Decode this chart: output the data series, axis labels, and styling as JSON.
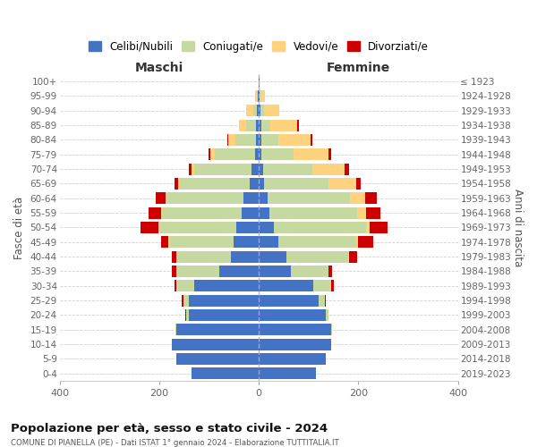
{
  "age_groups": [
    "0-4",
    "5-9",
    "10-14",
    "15-19",
    "20-24",
    "25-29",
    "30-34",
    "35-39",
    "40-44",
    "45-49",
    "50-54",
    "55-59",
    "60-64",
    "65-69",
    "70-74",
    "75-79",
    "80-84",
    "85-89",
    "90-94",
    "95-99",
    "100+"
  ],
  "birth_years": [
    "2019-2023",
    "2014-2018",
    "2009-2013",
    "2004-2008",
    "1999-2003",
    "1994-1998",
    "1989-1993",
    "1984-1988",
    "1979-1983",
    "1974-1978",
    "1969-1973",
    "1964-1968",
    "1959-1963",
    "1954-1958",
    "1949-1953",
    "1944-1948",
    "1939-1943",
    "1934-1938",
    "1929-1933",
    "1924-1928",
    "≤ 1923"
  ],
  "colors": {
    "single": "#4472c4",
    "married": "#c5d9a0",
    "widowed": "#ffd280",
    "divorced": "#cc0000"
  },
  "maschi": {
    "single": [
      135,
      165,
      175,
      165,
      140,
      140,
      130,
      80,
      55,
      50,
      45,
      35,
      30,
      18,
      15,
      8,
      6,
      5,
      3,
      2,
      1
    ],
    "married": [
      0,
      0,
      0,
      2,
      5,
      12,
      35,
      85,
      110,
      130,
      155,
      160,
      155,
      140,
      115,
      80,
      40,
      20,
      8,
      2,
      0
    ],
    "widowed": [
      0,
      0,
      0,
      0,
      0,
      0,
      0,
      0,
      0,
      1,
      2,
      2,
      2,
      4,
      5,
      10,
      15,
      15,
      15,
      3,
      0
    ],
    "divorced": [
      0,
      0,
      0,
      0,
      2,
      2,
      5,
      10,
      10,
      15,
      35,
      25,
      20,
      8,
      5,
      2,
      2,
      0,
      0,
      0,
      0
    ]
  },
  "femmine": {
    "single": [
      115,
      135,
      145,
      145,
      135,
      120,
      110,
      65,
      55,
      40,
      30,
      22,
      18,
      10,
      8,
      5,
      5,
      5,
      3,
      2,
      1
    ],
    "married": [
      0,
      0,
      0,
      2,
      5,
      12,
      35,
      75,
      125,
      155,
      185,
      175,
      165,
      130,
      100,
      65,
      35,
      18,
      8,
      2,
      0
    ],
    "widowed": [
      0,
      0,
      0,
      0,
      0,
      0,
      0,
      0,
      2,
      5,
      8,
      18,
      30,
      55,
      65,
      70,
      65,
      55,
      30,
      8,
      0
    ],
    "divorced": [
      0,
      0,
      0,
      0,
      0,
      2,
      5,
      8,
      15,
      30,
      35,
      30,
      25,
      10,
      8,
      5,
      2,
      2,
      0,
      0,
      0
    ]
  },
  "title_main": "Popolazione per età, sesso e stato civile - 2024",
  "title_sub": "COMUNE DI PIANELLA (PE) - Dati ISTAT 1° gennaio 2024 - Elaborazione TUTTITALIA.IT",
  "xlabel_left": "Maschi",
  "xlabel_right": "Femmine",
  "ylabel_left": "Fasce di età",
  "ylabel_right": "Anni di nascita",
  "legend_labels": [
    "Celibi/Nubili",
    "Coniugati/e",
    "Vedovi/e",
    "Divorziati/e"
  ],
  "xlim": 400,
  "background_color": "#ffffff",
  "grid_color": "#cccccc"
}
